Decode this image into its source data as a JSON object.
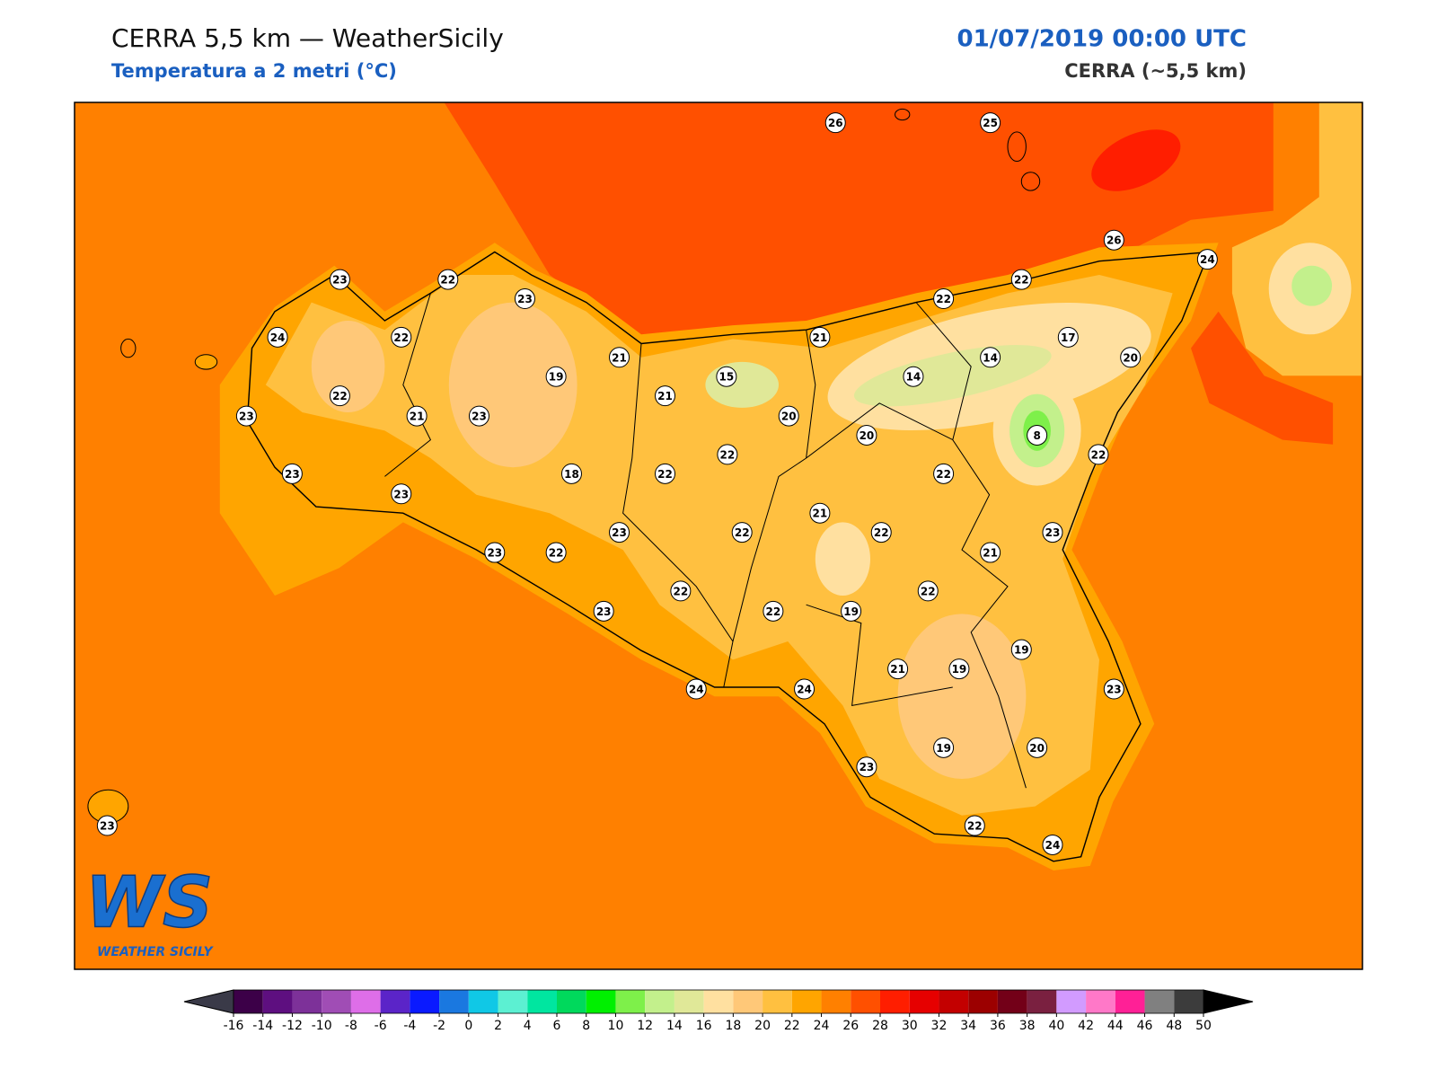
{
  "header": {
    "title": "CERRA 5,5 km — WeatherSicily",
    "subtitle": "Temperatura a 2 metri (°C)",
    "datetime": "01/07/2019 00:00 UTC",
    "model": "CERRA (~5,5 km)"
  },
  "map": {
    "stations": [
      26,
      25,
      26,
      24,
      23,
      22,
      23,
      22,
      22,
      24,
      22,
      21,
      17,
      20,
      21,
      19,
      15,
      14,
      14,
      22,
      21,
      23,
      21,
      23,
      20,
      20,
      8,
      22,
      22,
      18,
      22,
      22,
      23,
      23,
      21,
      23,
      22,
      22,
      23,
      23,
      22,
      21,
      22,
      22,
      23,
      22,
      19,
      19,
      21,
      19,
      23,
      24,
      24,
      23,
      19,
      20,
      22,
      24,
      23
    ]
  },
  "colorbar": {
    "ticks": [
      -16,
      -14,
      -12,
      -10,
      -8,
      -6,
      -4,
      -2,
      0,
      2,
      4,
      6,
      8,
      10,
      12,
      14,
      16,
      18,
      20,
      22,
      24,
      26,
      28,
      30,
      32,
      34,
      36,
      38,
      40,
      42,
      44,
      46,
      48,
      50
    ],
    "colors": [
      "#3c0048",
      "#5e0f80",
      "#7d3199",
      "#a04db5",
      "#de6ee8",
      "#5b24c8",
      "#0a1aff",
      "#1a78e0",
      "#10c8e6",
      "#5cf0d2",
      "#00e6a0",
      "#00d95c",
      "#00f000",
      "#7ef04a",
      "#c3f08c",
      "#e0e898",
      "#ffe0a0",
      "#ffc878",
      "#ffc040",
      "#ffa500",
      "#ff8000",
      "#ff5000",
      "#ff1e00",
      "#e60000",
      "#c30000",
      "#9c0000",
      "#730018",
      "#7a2040",
      "#d29bff",
      "#ff78c8",
      "#ff2096",
      "#808080",
      "#3c3c3c"
    ]
  },
  "logo": {
    "mark": "WS",
    "name": "WEATHER SICILY"
  }
}
